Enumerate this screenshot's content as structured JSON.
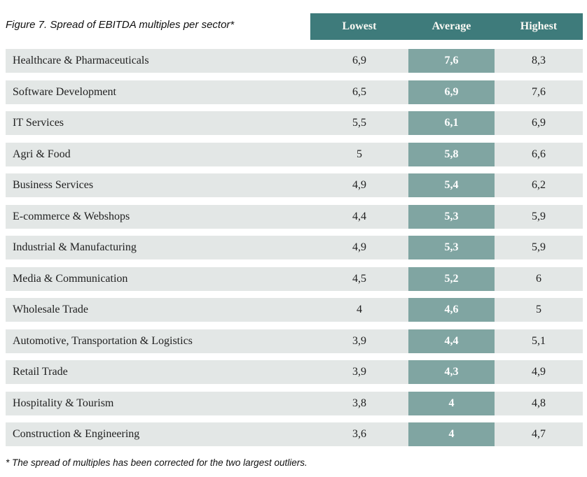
{
  "figure": {
    "title": "Figure 7. Spread of EBITDA multiples per sector*",
    "footnote": "* The spread of multiples has been corrected for the two largest outliers."
  },
  "colors": {
    "header_bg": "#3e7b7b",
    "average_cell_bg": "#80a5a2",
    "row_bg": "#e3e7e6",
    "header_text": "#faf9f4",
    "body_text": "#212121"
  },
  "chart_data": {
    "type": "table",
    "title": "Figure 7. Spread of EBITDA multiples per sector*",
    "columns": [
      "Lowest",
      "Average",
      "Highest"
    ],
    "value_note": "EBITDA multiples, decimal comma notation",
    "rows": [
      {
        "sector": "Healthcare & Pharmaceuticals",
        "lowest": "6,9",
        "average": "7,6",
        "highest": "8,3"
      },
      {
        "sector": "Software Development",
        "lowest": "6,5",
        "average": "6,9",
        "highest": "7,6"
      },
      {
        "sector": "IT Services",
        "lowest": "5,5",
        "average": "6,1",
        "highest": "6,9"
      },
      {
        "sector": "Agri & Food",
        "lowest": "5",
        "average": "5,8",
        "highest": "6,6"
      },
      {
        "sector": "Business Services",
        "lowest": "4,9",
        "average": "5,4",
        "highest": "6,2"
      },
      {
        "sector": "E-commerce & Webshops",
        "lowest": "4,4",
        "average": "5,3",
        "highest": "5,9"
      },
      {
        "sector": "Industrial & Manufacturing",
        "lowest": "4,9",
        "average": "5,3",
        "highest": "5,9"
      },
      {
        "sector": "Media & Communication",
        "lowest": "4,5",
        "average": "5,2",
        "highest": "6"
      },
      {
        "sector": "Wholesale Trade",
        "lowest": "4",
        "average": "4,6",
        "highest": "5"
      },
      {
        "sector": "Automotive, Transportation & Logistics",
        "lowest": "3,9",
        "average": "4,4",
        "highest": "5,1"
      },
      {
        "sector": "Retail Trade",
        "lowest": "3,9",
        "average": "4,3",
        "highest": "4,9"
      },
      {
        "sector": "Hospitality & Tourism",
        "lowest": "3,8",
        "average": "4",
        "highest": "4,8"
      },
      {
        "sector": "Construction & Engineering",
        "lowest": "3,6",
        "average": "4",
        "highest": "4,7"
      }
    ],
    "footnote": "* The spread of multiples has been corrected for the two largest outliers."
  }
}
